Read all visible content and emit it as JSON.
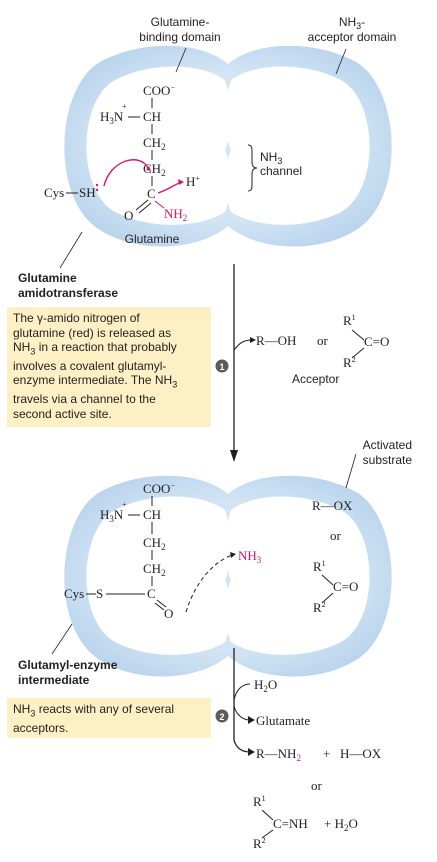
{
  "top_labels": {
    "glutamine_binding_domain": [
      "Glutamine-",
      "binding domain"
    ],
    "nh3_acceptor_domain": [
      "NH",
      "3",
      "-",
      "acceptor domain"
    ]
  },
  "enzyme_label": [
    "Glutamine",
    "amidotransferase"
  ],
  "intermediate_label": [
    "Glutamyl-enzyme",
    "intermediate"
  ],
  "glutamine_caption": "Glutamine",
  "channel_label": {
    "line1_main": "NH",
    "line1_sub": "3",
    "line2": "channel"
  },
  "step1": {
    "number": "1",
    "text_lines": [
      [
        "The ",
        "γ",
        "-amido nitrogen of"
      ],
      [
        "glutamine (red) is released as"
      ],
      [
        "NH",
        "3",
        " in a reaction that probably"
      ],
      [
        "involves a covalent glutamyl-"
      ],
      [
        "enzyme intermediate. The NH",
        "3"
      ],
      [
        "travels via a channel to the"
      ],
      [
        "second active site."
      ]
    ]
  },
  "step2": {
    "number": "2",
    "text_lines": [
      [
        "NH",
        "3",
        " reacts with any of several"
      ],
      [
        "acceptors."
      ]
    ]
  },
  "acceptor_label": "Acceptor",
  "activated_substrate_label": [
    "Activated",
    "substrate"
  ],
  "chem": {
    "coo": "COO",
    "h3n": "H",
    "ch": "CH",
    "ch2": "CH",
    "c": "C",
    "o": "O",
    "nh2": "NH",
    "hplus": "H",
    "cys": "Cys",
    "sh": "SH",
    "s": "S",
    "nh3": "NH",
    "r_oh": "R—OH",
    "or": "or",
    "r1": "R",
    "r2": "R",
    "c_eq_o": "C=O",
    "r_ox": "R—OX",
    "h2o": "H",
    "glutamate": "Glutamate",
    "r_nh2": "R—NH",
    "plus": "+",
    "h_ox": "H—OX",
    "c_eq_nh": "C=NH",
    "plus_h2o": "+ H"
  },
  "colors": {
    "membrane": "#c9dff2",
    "membrane_edge": "#d7e8f6",
    "interior": "#ffffff",
    "red": "#d6156b",
    "box": "#fdf0c5",
    "text": "#231f20"
  }
}
